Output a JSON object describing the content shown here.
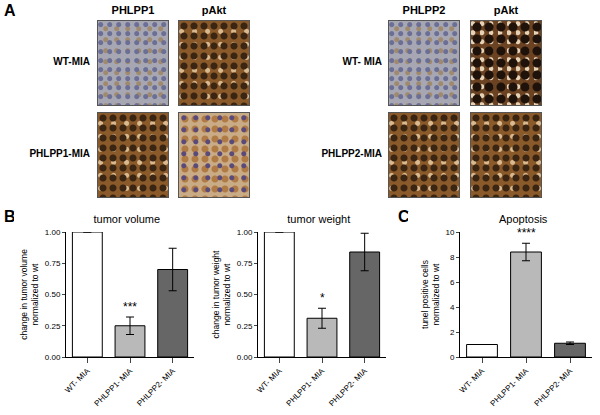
{
  "panel_labels": [
    "A",
    "B",
    "C"
  ],
  "panel_a": [
    {
      "columns": [
        "PHLPP1",
        "pAkt"
      ],
      "rows": [
        "WT-MIA",
        "PHLPP1-MIA"
      ]
    },
    {
      "columns": [
        "PHLPP2",
        "pAkt"
      ],
      "rows": [
        "WT- MIA",
        "PHLPP2-MIA"
      ]
    }
  ],
  "chart_data": [
    {
      "type": "bar",
      "title": "tumor volume",
      "y_label": [
        "change in tumor volume",
        "normalized to wt"
      ],
      "categories": [
        "WT- MIA",
        "PHLPP1- MIA",
        "PHLPP2- MIA"
      ],
      "values": [
        1.0,
        0.25,
        0.7
      ],
      "errors": [
        0,
        0.07,
        0.17
      ],
      "colors": [
        "#ffffff",
        "#b9b9b9",
        "#666666"
      ],
      "ylim": [
        0,
        1.0
      ],
      "yticks": [
        {
          "value": 0,
          "label": "0.00"
        },
        {
          "value": 0.25,
          "label": "0.25"
        },
        {
          "value": 0.5,
          "label": "0.50"
        },
        {
          "value": 0.75,
          "label": "0.75"
        },
        {
          "value": 1.0,
          "label": "1.00"
        }
      ],
      "grid": false,
      "annotations": [
        {
          "category": "PHLPP1- MIA",
          "text": "***"
        }
      ]
    },
    {
      "type": "bar",
      "title": "tumor weight",
      "y_label": [
        "change in tumor weight",
        "normalized to wt"
      ],
      "categories": [
        "WT- MIA",
        "PHLPP1- MIA",
        "PHLPP2- MIA"
      ],
      "values": [
        1.0,
        0.31,
        0.84
      ],
      "errors": [
        0,
        0.08,
        0.15
      ],
      "colors": [
        "#ffffff",
        "#b9b9b9",
        "#666666"
      ],
      "ylim": [
        0,
        1.0
      ],
      "yticks": [
        {
          "value": 0,
          "label": "0.00"
        },
        {
          "value": 0.25,
          "label": "0.25"
        },
        {
          "value": 0.5,
          "label": "0.50"
        },
        {
          "value": 0.75,
          "label": "0.75"
        },
        {
          "value": 1.0,
          "label": "1.00"
        }
      ],
      "grid": false,
      "annotations": [
        {
          "category": "PHLPP1- MIA",
          "text": "*"
        }
      ]
    },
    {
      "type": "bar",
      "title": "Apoptosis",
      "y_label": [
        "tunel positive cells",
        "normalized to wt"
      ],
      "categories": [
        "WT- MIA",
        "PHLPP1- MIA",
        "PHLPP2- MIA"
      ],
      "values": [
        1.0,
        8.4,
        1.1
      ],
      "errors": [
        0,
        0.7,
        0.1
      ],
      "colors": [
        "#ffffff",
        "#b9b9b9",
        "#666666"
      ],
      "ylim": [
        0,
        10
      ],
      "yticks": [
        0,
        2,
        4,
        6,
        8,
        10
      ],
      "grid": false,
      "annotations": [
        {
          "category": "PHLPP1- MIA",
          "text": "****"
        }
      ]
    }
  ]
}
